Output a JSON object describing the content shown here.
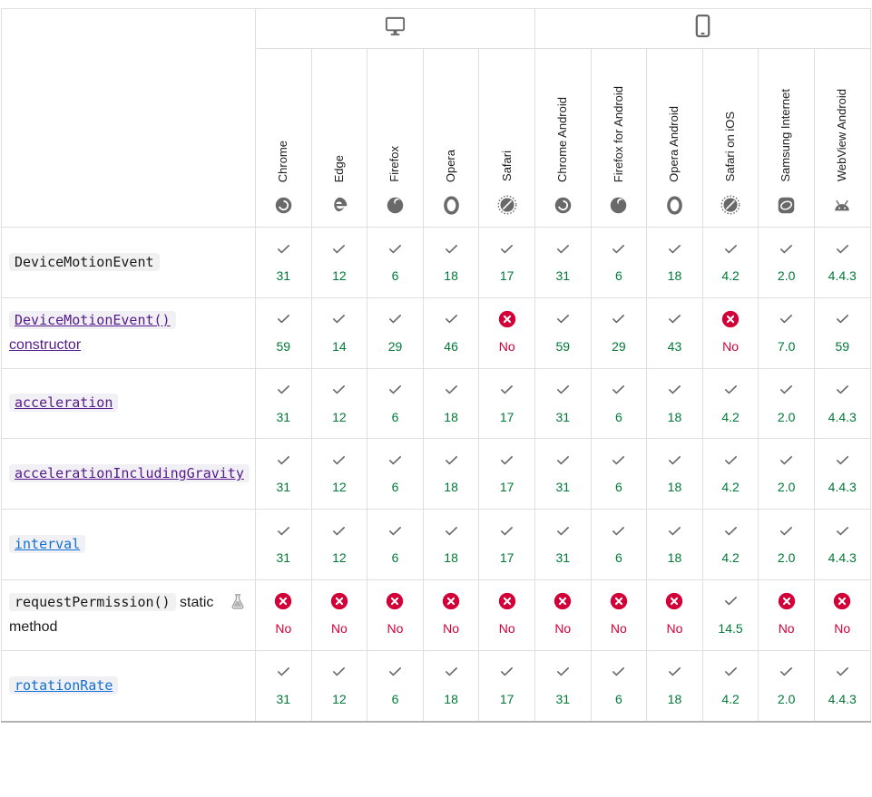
{
  "header": {
    "platforms": [
      {
        "icon": "desktop",
        "span": 5
      },
      {
        "icon": "mobile",
        "span": 6
      }
    ],
    "browsers": [
      {
        "name": "Chrome",
        "icon": "chrome"
      },
      {
        "name": "Edge",
        "icon": "edge"
      },
      {
        "name": "Firefox",
        "icon": "firefox"
      },
      {
        "name": "Opera",
        "icon": "opera"
      },
      {
        "name": "Safari",
        "icon": "safari"
      },
      {
        "name": "Chrome Android",
        "icon": "chrome"
      },
      {
        "name": "Firefox for Android",
        "icon": "firefox"
      },
      {
        "name": "Opera Android",
        "icon": "opera"
      },
      {
        "name": "Safari on iOS",
        "icon": "safari"
      },
      {
        "name": "Samsung Internet",
        "icon": "samsung"
      },
      {
        "name": "WebView Android",
        "icon": "webview"
      }
    ]
  },
  "rows": [
    {
      "code": "DeviceMotionEvent",
      "text": "",
      "link": "none",
      "experimental": false,
      "support": [
        "31",
        "12",
        "6",
        "18",
        "17",
        "31",
        "6",
        "18",
        "4.2",
        "2.0",
        "4.4.3"
      ]
    },
    {
      "code": "DeviceMotionEvent()",
      "text": "constructor",
      "link": "visited",
      "experimental": false,
      "support": [
        "59",
        "14",
        "29",
        "46",
        "No",
        "59",
        "29",
        "43",
        "No",
        "7.0",
        "59"
      ]
    },
    {
      "code": "acceleration",
      "text": "",
      "link": "visited",
      "experimental": false,
      "support": [
        "31",
        "12",
        "6",
        "18",
        "17",
        "31",
        "6",
        "18",
        "4.2",
        "2.0",
        "4.4.3"
      ]
    },
    {
      "code": "accelerationIncludingGravity",
      "text": "",
      "link": "visited",
      "experimental": false,
      "support": [
        "31",
        "12",
        "6",
        "18",
        "17",
        "31",
        "6",
        "18",
        "4.2",
        "2.0",
        "4.4.3"
      ]
    },
    {
      "code": "interval",
      "text": "",
      "link": "unvisited",
      "experimental": false,
      "support": [
        "31",
        "12",
        "6",
        "18",
        "17",
        "31",
        "6",
        "18",
        "4.2",
        "2.0",
        "4.4.3"
      ]
    },
    {
      "code": "requestPermission()",
      "text": "static method",
      "link": "none",
      "experimental": true,
      "support": [
        "No",
        "No",
        "No",
        "No",
        "No",
        "No",
        "No",
        "No",
        "14.5",
        "No",
        "No"
      ]
    },
    {
      "code": "rotationRate",
      "text": "",
      "link": "unvisited",
      "experimental": false,
      "support": [
        "31",
        "12",
        "6",
        "18",
        "17",
        "31",
        "6",
        "18",
        "4.2",
        "2.0",
        "4.4.3"
      ]
    }
  ],
  "colors": {
    "supported_text": "#007936",
    "unsupported_text": "#d30038",
    "unsupported_badge": "#d30038",
    "icon_gray": "#696969",
    "border": "#e0dede",
    "link": "#1070d2",
    "visited_link": "#551a8b",
    "code_background": "#f1f1f1"
  }
}
